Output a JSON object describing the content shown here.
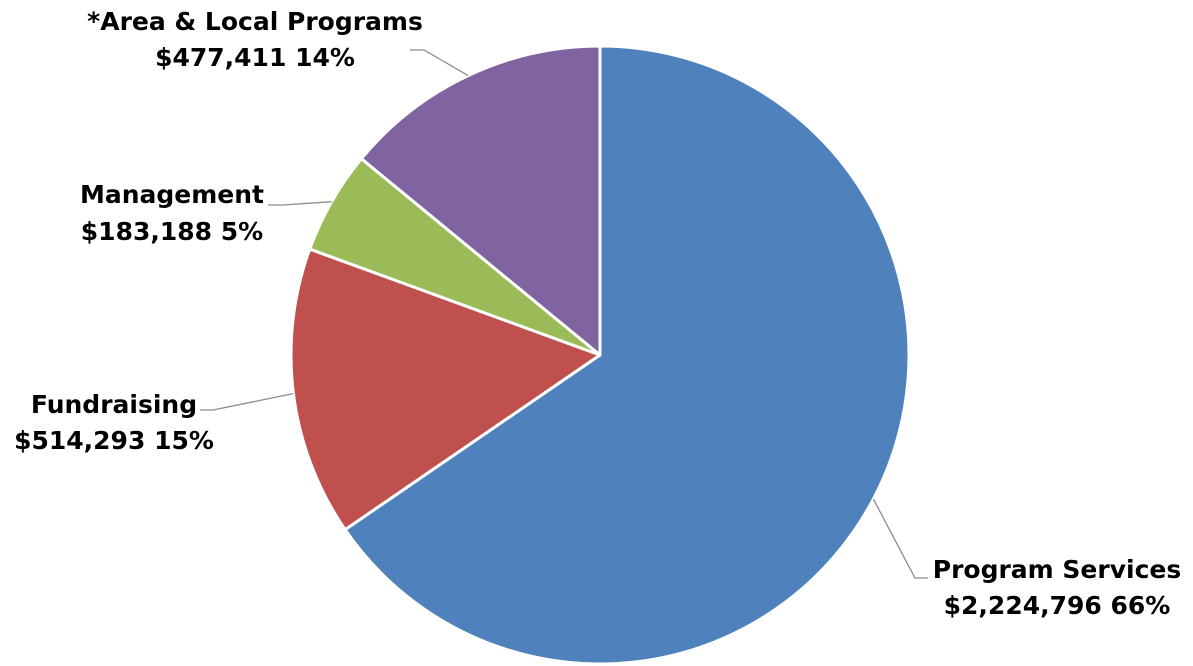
{
  "chart_data": {
    "type": "pie",
    "start_angle_deg": 0,
    "direction": "clockwise",
    "slices": [
      {
        "key": "program-services",
        "name": "Program Services",
        "value": 2224796,
        "value_label": "$2,224,796",
        "percent": 66,
        "percent_label": "66%",
        "color": "#4f81bd"
      },
      {
        "key": "fundraising",
        "name": "Fundraising",
        "value": 514293,
        "value_label": "$514,293",
        "percent": 15,
        "percent_label": "15%",
        "color": "#c0504d"
      },
      {
        "key": "management",
        "name": "Management",
        "value": 183188,
        "value_label": "$183,188",
        "percent": 5,
        "percent_label": "5%",
        "color": "#9bbb59"
      },
      {
        "key": "area-local-programs",
        "name": "*Area & Local Programs",
        "value": 477411,
        "value_label": "$477,411",
        "percent": 14,
        "percent_label": "14%",
        "color": "#8064a2"
      }
    ]
  }
}
